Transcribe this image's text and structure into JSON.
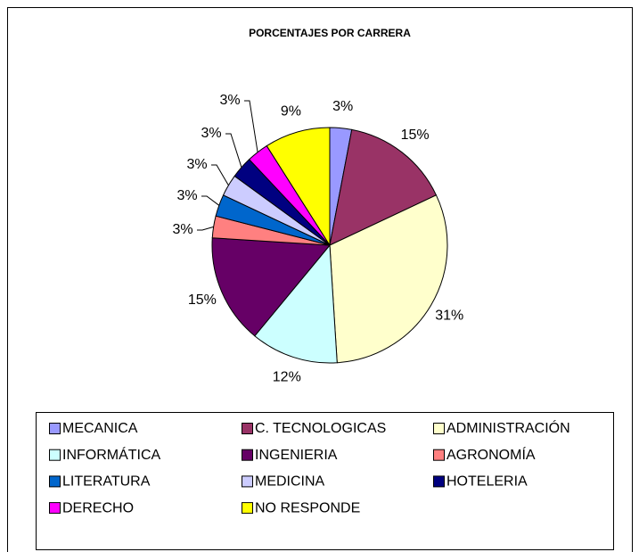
{
  "chart_data": {
    "type": "pie",
    "title": "PORCENTAJES POR CARRERA",
    "categories": [
      "MECANICA",
      "C. TECNOLOGICAS",
      "ADMINISTRACIÓN",
      "INFORMÁTICA",
      "INGENIERIA",
      "AGRONOMÍA",
      "LITERATURA",
      "MEDICINA",
      "HOTELERIA",
      "DERECHO",
      "NO RESPONDE"
    ],
    "values": [
      3,
      15,
      31,
      12,
      15,
      3,
      3,
      3,
      3,
      3,
      9
    ],
    "value_labels": [
      "3%",
      "15%",
      "31%",
      "12%",
      "15%",
      "3%",
      "3%",
      "3%",
      "3%",
      "3%",
      "9%"
    ],
    "colors": [
      "#9999ff",
      "#993366",
      "#ffffcc",
      "#ccffff",
      "#660066",
      "#ff8080",
      "#0066cc",
      "#ccccff",
      "#000080",
      "#ff00ff",
      "#ffff00"
    ],
    "legend": "bottom"
  }
}
